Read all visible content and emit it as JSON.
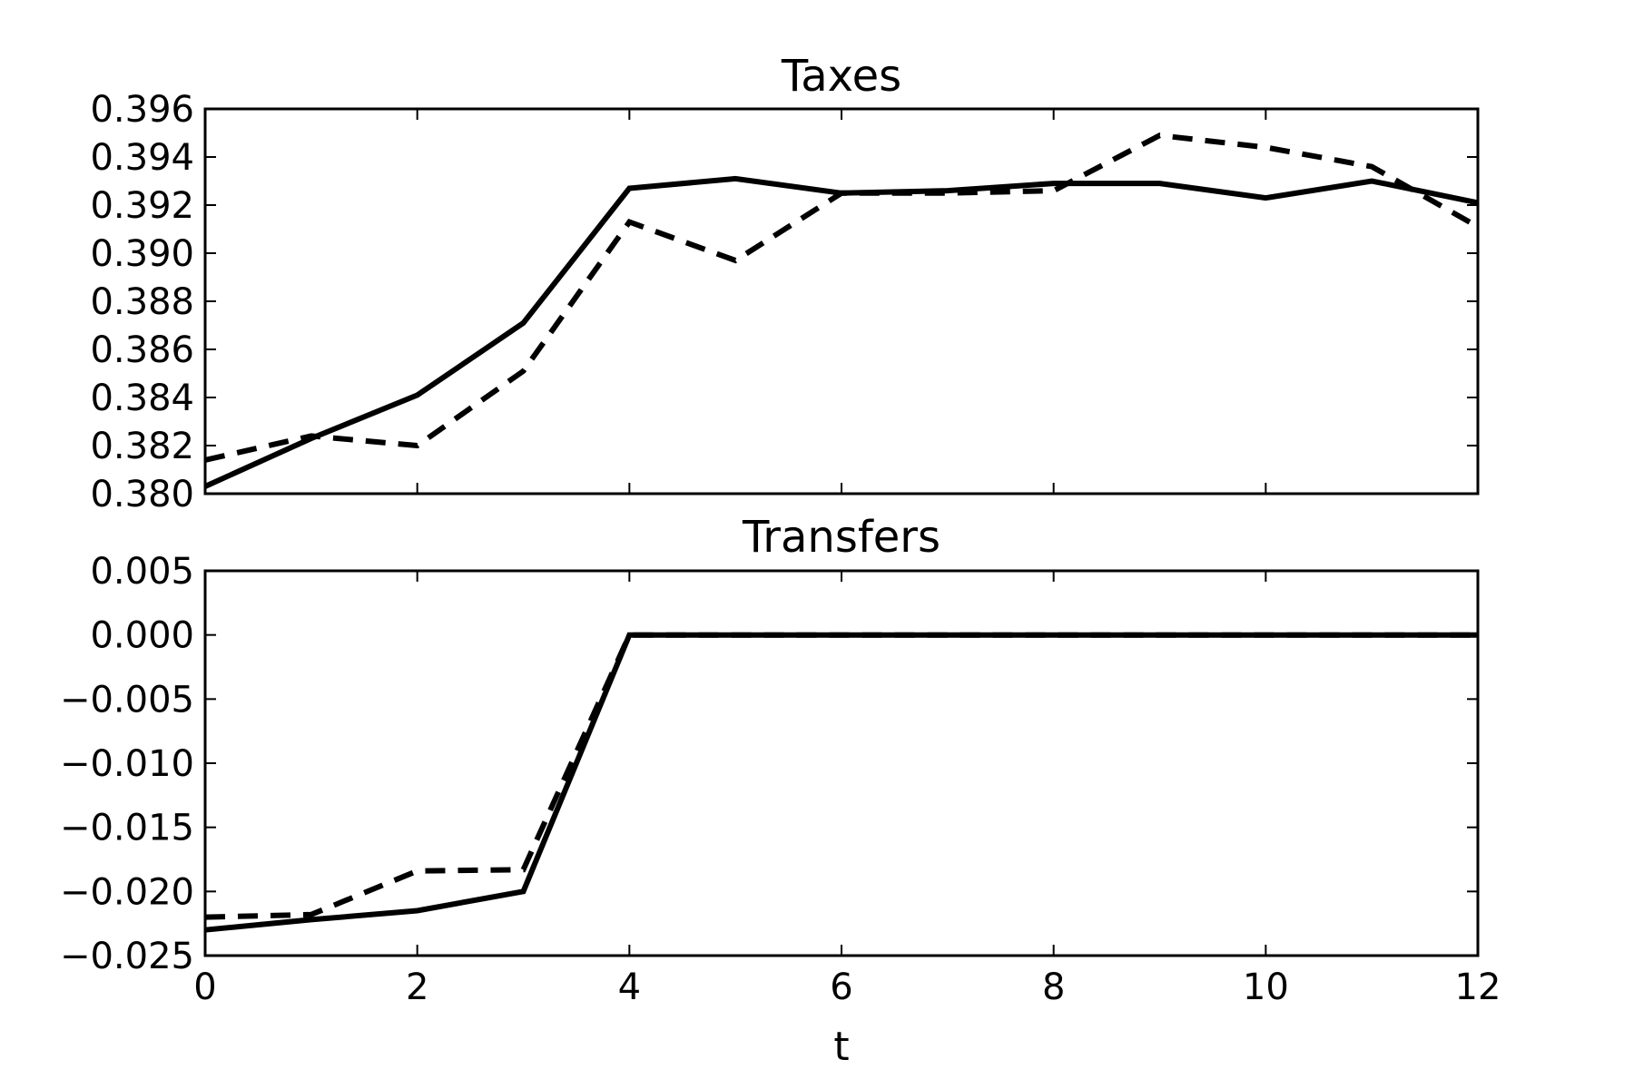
{
  "chart_data": [
    {
      "type": "line",
      "title": "Taxes",
      "xlabel": "",
      "ylabel": "",
      "xlim": [
        0,
        12
      ],
      "ylim": [
        0.38,
        0.396
      ],
      "xticks": [
        0,
        2,
        4,
        6,
        8,
        10,
        12
      ],
      "xtick_labels": [
        "",
        "",
        "",
        "",
        "",
        "",
        ""
      ],
      "yticks": [
        0.38,
        0.382,
        0.384,
        0.386,
        0.388,
        0.39,
        0.392,
        0.394,
        0.396
      ],
      "ytick_labels": [
        "0.380",
        "0.382",
        "0.384",
        "0.386",
        "0.388",
        "0.390",
        "0.392",
        "0.394",
        "0.396"
      ],
      "grid": false,
      "x": [
        0,
        1,
        2,
        3,
        4,
        5,
        6,
        7,
        8,
        9,
        10,
        11,
        12
      ],
      "series": [
        {
          "style": "solid",
          "color": "#000000",
          "values": [
            0.3803,
            0.3823,
            0.3841,
            0.3871,
            0.3927,
            0.3931,
            0.3925,
            0.3926,
            0.3929,
            0.3929,
            0.3923,
            0.393,
            0.3921
          ]
        },
        {
          "style": "dashed",
          "color": "#000000",
          "values": [
            0.3814,
            0.3824,
            0.382,
            0.3851,
            0.3913,
            0.3897,
            0.3925,
            0.3925,
            0.3926,
            0.3949,
            0.3944,
            0.3936,
            0.3911
          ]
        }
      ]
    },
    {
      "type": "line",
      "title": "Transfers",
      "xlabel": "t",
      "ylabel": "",
      "xlim": [
        0,
        12
      ],
      "ylim": [
        -0.025,
        0.005
      ],
      "xticks": [
        0,
        2,
        4,
        6,
        8,
        10,
        12
      ],
      "xtick_labels": [
        "0",
        "2",
        "4",
        "6",
        "8",
        "10",
        "12"
      ],
      "yticks": [
        -0.025,
        -0.02,
        -0.015,
        -0.01,
        -0.005,
        0.0,
        0.005
      ],
      "ytick_labels": [
        "−0.025",
        "−0.020",
        "−0.015",
        "−0.010",
        "−0.005",
        "0.000",
        "0.005"
      ],
      "grid": false,
      "x": [
        0,
        1,
        2,
        3,
        4,
        5,
        6,
        7,
        8,
        9,
        10,
        11,
        12
      ],
      "series": [
        {
          "style": "solid",
          "color": "#000000",
          "values": [
            -0.023,
            -0.0222,
            -0.0215,
            -0.02,
            0.0,
            0.0,
            0.0,
            0.0,
            0.0,
            0.0,
            0.0,
            0.0,
            0.0
          ]
        },
        {
          "style": "dashed",
          "color": "#000000",
          "values": [
            -0.022,
            -0.0218,
            -0.0184,
            -0.0183,
            0.0,
            0.0,
            0.0,
            0.0,
            0.0,
            0.0,
            0.0,
            0.0,
            0.0
          ]
        }
      ]
    }
  ]
}
